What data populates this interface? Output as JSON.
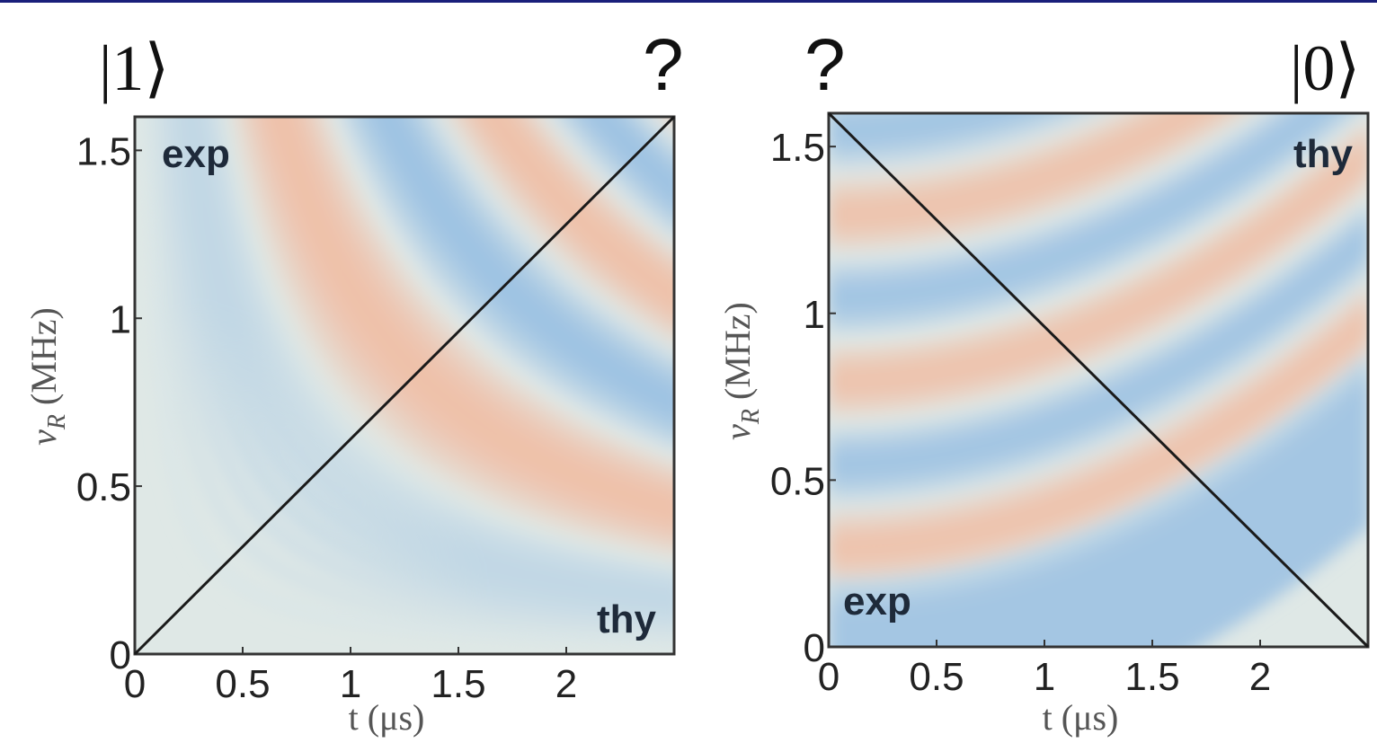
{
  "chart_data": [
    {
      "type": "line",
      "title_left": "|1⟩",
      "title_right": "?",
      "x_label": "t (μs)",
      "y_label_symbol": "ν",
      "y_label_subscript": "R",
      "y_label_unit": "(MHz)",
      "upper_label": "exp",
      "lower_label": "thy",
      "x": [
        0,
        2.5
      ],
      "series": [
        {
          "color": "#1a1a1a",
          "values": [
            0,
            1.6
          ]
        }
      ],
      "xlim": [
        0,
        2.5
      ],
      "xticks": [
        0,
        0.5,
        1,
        1.5,
        2
      ],
      "ylim": [
        0,
        1.6
      ],
      "yticks": [
        0,
        0.5,
        1,
        1.5
      ]
    },
    {
      "type": "line",
      "title_left": "?",
      "title_right": "|0⟩",
      "x_label": "t (μs)",
      "y_label_symbol": "ν",
      "y_label_subscript": "R",
      "y_label_unit": "(MHz)",
      "upper_label": "thy",
      "lower_label": "exp",
      "x": [
        0,
        2.5
      ],
      "series": [
        {
          "color": "#1a1a1a",
          "values": [
            1.6,
            0
          ]
        }
      ],
      "xlim": [
        0,
        2.5
      ],
      "xticks": [
        0,
        0.5,
        1,
        1.5,
        2
      ],
      "ylim": [
        0,
        1.6
      ],
      "yticks": [
        0,
        0.5,
        1,
        1.5
      ]
    }
  ]
}
